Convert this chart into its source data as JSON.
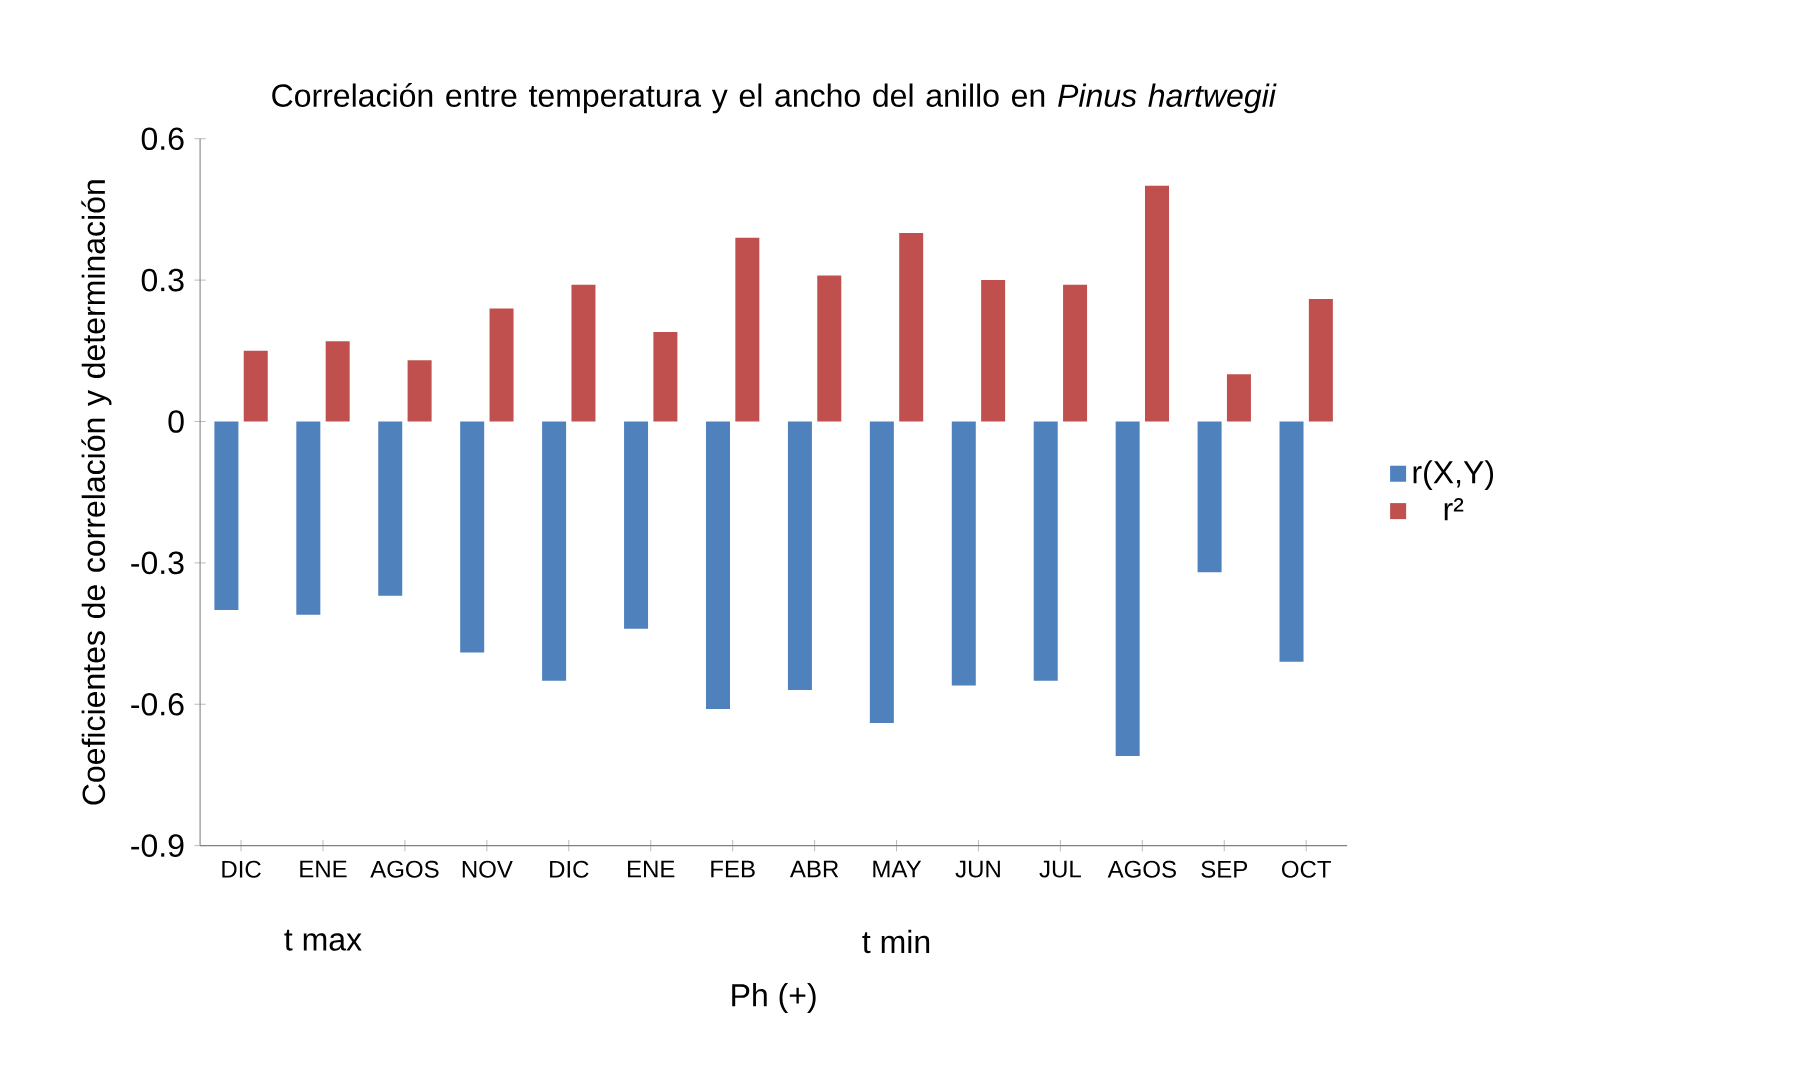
{
  "chart_data": {
    "type": "bar",
    "title": "Correlación entre temperatura y el ancho del anillo en *Pinus hartwegii*",
    "ylabel": "Coeficientes de correlación y determinación",
    "categories": [
      "DIC",
      "ENE",
      "AGOS",
      "NOV",
      "DIC",
      "ENE",
      "FEB",
      "ABR",
      "MAY",
      "JUN",
      "JUL",
      "AGOS",
      "SEP",
      "OCT"
    ],
    "series": [
      {
        "name": "r(X,Y)",
        "color": "#4f81bd",
        "values": [
          -0.4,
          -0.41,
          -0.37,
          -0.49,
          -0.55,
          -0.44,
          -0.61,
          -0.57,
          -0.64,
          -0.56,
          -0.55,
          -0.71,
          -0.32,
          -0.51
        ]
      },
      {
        "name": "r²",
        "color": "#c0504d",
        "values": [
          0.15,
          0.17,
          0.13,
          0.24,
          0.29,
          0.19,
          0.39,
          0.31,
          0.4,
          0.3,
          0.29,
          0.5,
          0.1,
          0.26
        ]
      }
    ],
    "annotations": [
      "t max",
      "t min",
      "Ph (+)"
    ],
    "ylim": [
      -0.9,
      0.6
    ],
    "yticks": [
      -0.9,
      -0.6,
      -0.3,
      0,
      0.3,
      0.6
    ],
    "legend": "right",
    "grid": false
  }
}
